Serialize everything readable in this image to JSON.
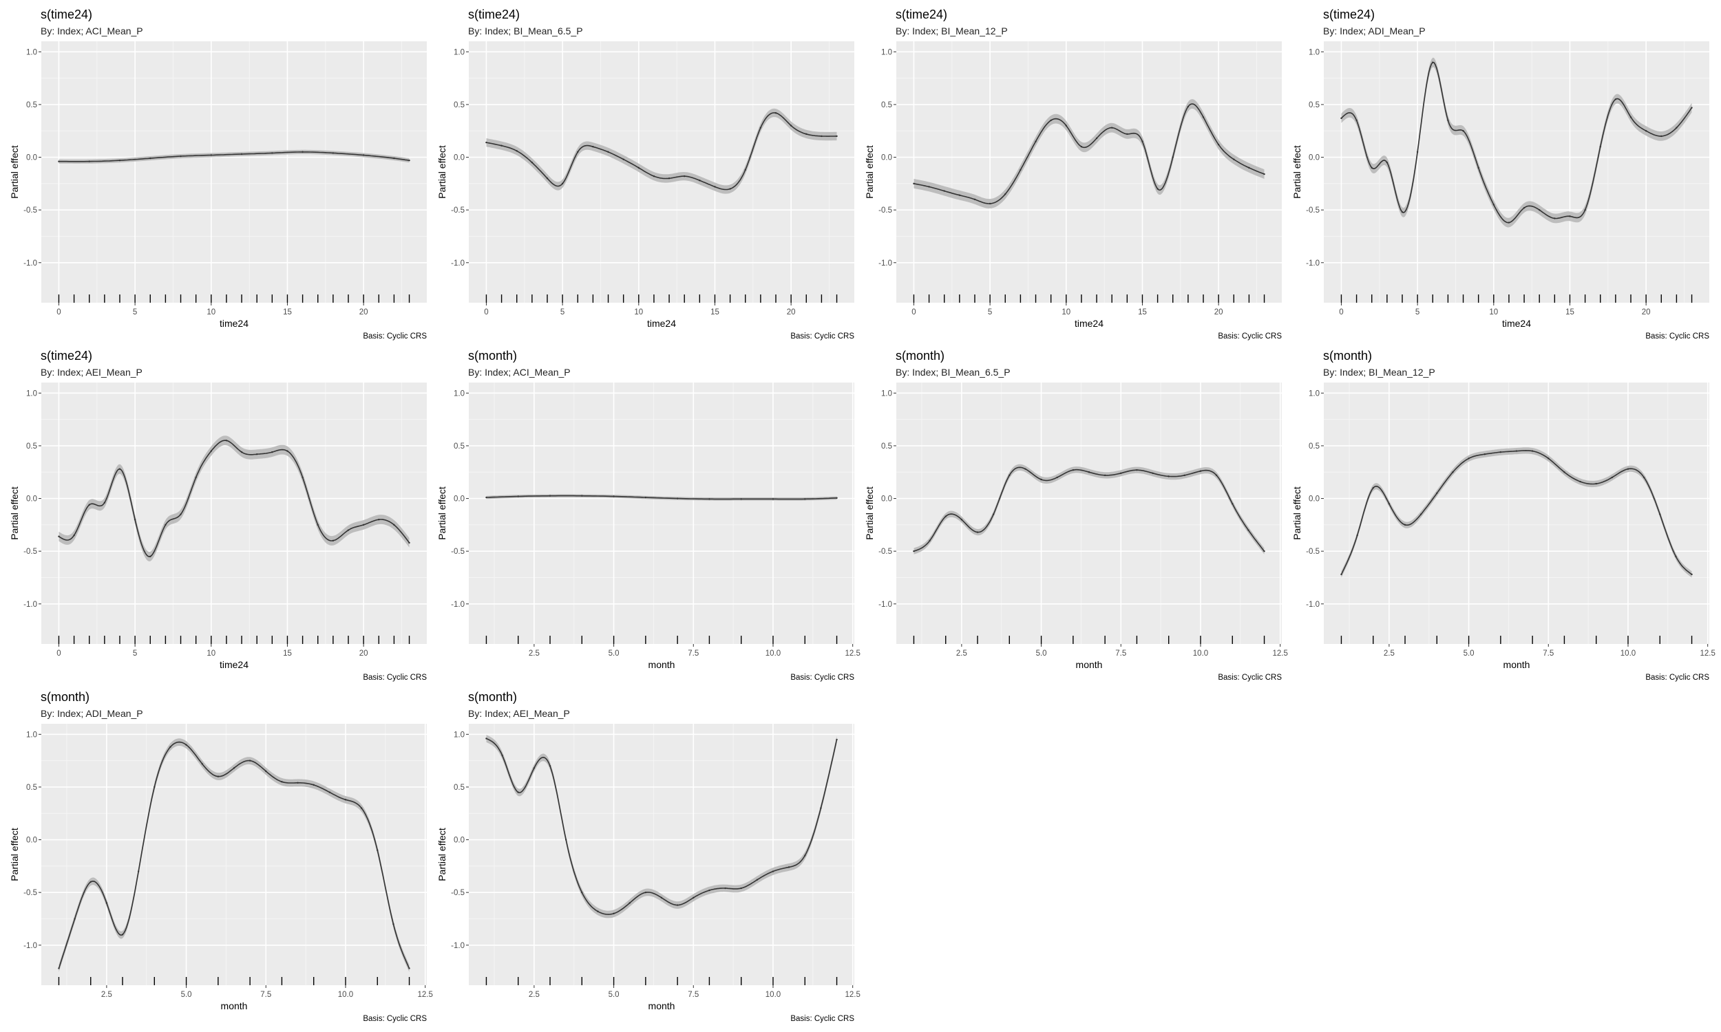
{
  "chart_data": [
    {
      "type": "line",
      "title": "s(time24)",
      "subtitle": "By: Index; ACI_Mean_P",
      "xlabel": "time24",
      "ylabel": "Partial effect",
      "caption": "Basis: Cyclic CRS",
      "xlim": [
        -1.15,
        24.15
      ],
      "ylim": [
        -1.38,
        1.1
      ],
      "xticks": [
        0,
        5,
        10,
        15,
        20
      ],
      "xtick_labels": [
        "0",
        "5",
        "10",
        "15",
        "20"
      ],
      "yticks": [
        -1.0,
        -0.5,
        0.0,
        0.5,
        1.0
      ],
      "ytick_labels": [
        "-1.0",
        "-0.5",
        "0.0",
        "0.5",
        "1.0"
      ],
      "rug": [
        0,
        1,
        2,
        3,
        4,
        5,
        6,
        7,
        8,
        9,
        10,
        11,
        12,
        13,
        14,
        15,
        16,
        17,
        18,
        19,
        20,
        21,
        22,
        23
      ],
      "ci_halfwidth": 0.02,
      "x": [
        0,
        2,
        4,
        6,
        8,
        10,
        12,
        14,
        16,
        18,
        20,
        22,
        23
      ],
      "y": [
        -0.04,
        -0.04,
        -0.03,
        -0.01,
        0.01,
        0.02,
        0.03,
        0.04,
        0.05,
        0.04,
        0.02,
        -0.01,
        -0.03
      ],
      "grid": true
    },
    {
      "type": "line",
      "title": "s(time24)",
      "subtitle": "By: Index; BI_Mean_6.5_P",
      "xlabel": "time24",
      "ylabel": "Partial effect",
      "caption": "Basis: Cyclic CRS",
      "xlim": [
        -1.15,
        24.15
      ],
      "ylim": [
        -1.38,
        1.1
      ],
      "xticks": [
        0,
        5,
        10,
        15,
        20
      ],
      "xtick_labels": [
        "0",
        "5",
        "10",
        "15",
        "20"
      ],
      "yticks": [
        -1.0,
        -0.5,
        0.0,
        0.5,
        1.0
      ],
      "ytick_labels": [
        "-1.0",
        "-0.5",
        "0.0",
        "0.5",
        "1.0"
      ],
      "rug": [
        0,
        1,
        2,
        3,
        4,
        5,
        6,
        7,
        8,
        9,
        10,
        11,
        12,
        13,
        14,
        15,
        16,
        17,
        18,
        19,
        20,
        21,
        22,
        23
      ],
      "ci_halfwidth": 0.04,
      "x": [
        0,
        1,
        2,
        3,
        4,
        5,
        6,
        7,
        8,
        9,
        10,
        11,
        12,
        13,
        14,
        15,
        16,
        17,
        18,
        19,
        20,
        21,
        22,
        23
      ],
      "y": [
        0.14,
        0.11,
        0.06,
        -0.05,
        -0.2,
        -0.25,
        0.05,
        0.1,
        0.05,
        -0.02,
        -0.1,
        -0.18,
        -0.2,
        -0.18,
        -0.22,
        -0.28,
        -0.3,
        -0.12,
        0.28,
        0.42,
        0.3,
        0.22,
        0.2,
        0.2
      ],
      "grid": true
    },
    {
      "type": "line",
      "title": "s(time24)",
      "subtitle": "By: Index; BI_Mean_12_P",
      "xlabel": "time24",
      "ylabel": "Partial effect",
      "caption": "Basis: Cyclic CRS",
      "xlim": [
        -1.15,
        24.15
      ],
      "ylim": [
        -1.38,
        1.1
      ],
      "xticks": [
        0,
        5,
        10,
        15,
        20
      ],
      "xtick_labels": [
        "0",
        "5",
        "10",
        "15",
        "20"
      ],
      "yticks": [
        -1.0,
        -0.5,
        0.0,
        0.5,
        1.0
      ],
      "ytick_labels": [
        "-1.0",
        "-0.5",
        "0.0",
        "0.5",
        "1.0"
      ],
      "rug": [
        0,
        1,
        2,
        3,
        4,
        5,
        6,
        7,
        8,
        9,
        10,
        11,
        12,
        13,
        14,
        15,
        16,
        17,
        18,
        19,
        20,
        21,
        22,
        23
      ],
      "ci_halfwidth": 0.045,
      "x": [
        0,
        1,
        2,
        3,
        4,
        5,
        6,
        7,
        8,
        9,
        10,
        11,
        12,
        13,
        14,
        15,
        16,
        17,
        18,
        19,
        20,
        21,
        22,
        23
      ],
      "y": [
        -0.25,
        -0.28,
        -0.32,
        -0.36,
        -0.4,
        -0.44,
        -0.35,
        -0.12,
        0.15,
        0.35,
        0.3,
        0.1,
        0.18,
        0.28,
        0.22,
        0.15,
        -0.3,
        0.0,
        0.48,
        0.38,
        0.12,
        -0.02,
        -0.1,
        -0.16
      ],
      "grid": true
    },
    {
      "type": "line",
      "title": "s(time24)",
      "subtitle": "By: Index; ADI_Mean_P",
      "xlabel": "time24",
      "ylabel": "Partial effect",
      "caption": "Basis: Cyclic CRS",
      "xlim": [
        -1.15,
        24.15
      ],
      "ylim": [
        -1.38,
        1.1
      ],
      "xticks": [
        0,
        5,
        10,
        15,
        20
      ],
      "xtick_labels": [
        "0",
        "5",
        "10",
        "15",
        "20"
      ],
      "yticks": [
        -1.0,
        -0.5,
        0.0,
        0.5,
        1.0
      ],
      "ytick_labels": [
        "-1.0",
        "-0.5",
        "0.0",
        "0.5",
        "1.0"
      ],
      "rug": [
        0,
        1,
        2,
        3,
        4,
        5,
        6,
        7,
        8,
        9,
        10,
        11,
        12,
        13,
        14,
        15,
        16,
        17,
        18,
        19,
        20,
        21,
        22,
        23
      ],
      "ci_halfwidth": 0.045,
      "x": [
        0,
        1,
        2,
        3,
        4,
        5,
        6,
        7,
        8,
        9,
        10,
        11,
        12,
        13,
        14,
        15,
        16,
        17,
        18,
        19,
        20,
        21,
        22,
        23
      ],
      "y": [
        0.37,
        0.35,
        -0.1,
        -0.05,
        -0.52,
        0.05,
        0.9,
        0.35,
        0.25,
        -0.1,
        -0.45,
        -0.62,
        -0.48,
        -0.5,
        -0.58,
        -0.56,
        -0.5,
        0.1,
        0.55,
        0.38,
        0.25,
        0.2,
        0.28,
        0.47
      ],
      "grid": true
    },
    {
      "type": "line",
      "title": "s(time24)",
      "subtitle": "By: Index; AEI_Mean_P",
      "xlabel": "time24",
      "ylabel": "Partial effect",
      "caption": "Basis: Cyclic CRS",
      "xlim": [
        -1.15,
        24.15
      ],
      "ylim": [
        -1.38,
        1.1
      ],
      "xticks": [
        0,
        5,
        10,
        15,
        20
      ],
      "xtick_labels": [
        "0",
        "5",
        "10",
        "15",
        "20"
      ],
      "yticks": [
        -1.0,
        -0.5,
        0.0,
        0.5,
        1.0
      ],
      "ytick_labels": [
        "-1.0",
        "-0.5",
        "0.0",
        "0.5",
        "1.0"
      ],
      "rug": [
        0,
        1,
        2,
        3,
        4,
        5,
        6,
        7,
        8,
        9,
        10,
        11,
        12,
        13,
        14,
        15,
        16,
        17,
        18,
        19,
        20,
        21,
        22,
        23
      ],
      "ci_halfwidth": 0.045,
      "x": [
        0,
        1,
        2,
        3,
        4,
        5,
        6,
        7,
        8,
        9,
        10,
        11,
        12,
        13,
        14,
        15,
        16,
        17,
        18,
        19,
        20,
        21,
        22,
        23
      ],
      "y": [
        -0.36,
        -0.35,
        -0.06,
        -0.04,
        0.28,
        -0.2,
        -0.55,
        -0.25,
        -0.15,
        0.2,
        0.45,
        0.55,
        0.44,
        0.42,
        0.44,
        0.45,
        0.2,
        -0.25,
        -0.4,
        -0.3,
        -0.25,
        -0.2,
        -0.25,
        -0.42
      ],
      "grid": true
    },
    {
      "type": "line",
      "title": "s(month)",
      "subtitle": "By: Index; ACI_Mean_P",
      "xlabel": "month",
      "ylabel": "Partial effect",
      "caption": "Basis: Cyclic CRS",
      "xlim": [
        0.45,
        12.55
      ],
      "ylim": [
        -1.38,
        1.1
      ],
      "xticks": [
        2.5,
        5.0,
        7.5,
        10.0,
        12.5
      ],
      "xtick_labels": [
        "2.5",
        "5.0",
        "7.5",
        "10.0",
        "12.5"
      ],
      "yticks": [
        -1.0,
        -0.5,
        0.0,
        0.5,
        1.0
      ],
      "ytick_labels": [
        "-1.0",
        "-0.5",
        "0.0",
        "0.5",
        "1.0"
      ],
      "rug": [
        1,
        2,
        3,
        4,
        5,
        6,
        7,
        8,
        9,
        10,
        11,
        12
      ],
      "ci_halfwidth": 0.015,
      "x": [
        1,
        2,
        3,
        4,
        5,
        6,
        7,
        8,
        9,
        10,
        11,
        12
      ],
      "y": [
        0.01,
        0.02,
        0.025,
        0.025,
        0.02,
        0.01,
        0.0,
        -0.005,
        -0.005,
        -0.005,
        -0.005,
        0.005
      ],
      "grid": true
    },
    {
      "type": "line",
      "title": "s(month)",
      "subtitle": "By: Index; BI_Mean_6.5_P",
      "xlabel": "month",
      "ylabel": "Partial effect",
      "caption": "Basis: Cyclic CRS",
      "xlim": [
        0.45,
        12.55
      ],
      "ylim": [
        -1.38,
        1.1
      ],
      "xticks": [
        2.5,
        5.0,
        7.5,
        10.0,
        12.5
      ],
      "xtick_labels": [
        "2.5",
        "5.0",
        "7.5",
        "10.0",
        "12.5"
      ],
      "yticks": [
        -1.0,
        -0.5,
        0.0,
        0.5,
        1.0
      ],
      "ytick_labels": [
        "-1.0",
        "-0.5",
        "0.0",
        "0.5",
        "1.0"
      ],
      "rug": [
        1,
        2,
        3,
        4,
        5,
        6,
        7,
        8,
        9,
        10,
        11,
        12
      ],
      "ci_halfwidth": 0.03,
      "x": [
        1,
        1.5,
        2,
        2.5,
        3,
        3.5,
        4,
        4.5,
        5,
        5.5,
        6,
        6.5,
        7,
        7.5,
        8,
        8.5,
        9,
        9.5,
        10,
        10.5,
        11,
        11.5,
        12
      ],
      "y": [
        -0.5,
        -0.4,
        -0.17,
        -0.2,
        -0.32,
        -0.15,
        0.22,
        0.28,
        0.18,
        0.2,
        0.27,
        0.25,
        0.22,
        0.24,
        0.27,
        0.24,
        0.21,
        0.22,
        0.26,
        0.22,
        -0.05,
        -0.3,
        -0.5
      ],
      "grid": true
    },
    {
      "type": "line",
      "title": "s(month)",
      "subtitle": "By: Index; BI_Mean_12_P",
      "xlabel": "month",
      "ylabel": "Partial effect",
      "caption": "Basis: Cyclic CRS",
      "xlim": [
        0.45,
        12.55
      ],
      "ylim": [
        -1.38,
        1.1
      ],
      "xticks": [
        2.5,
        5.0,
        7.5,
        10.0,
        12.5
      ],
      "xtick_labels": [
        "2.5",
        "5.0",
        "7.5",
        "10.0",
        "12.5"
      ],
      "yticks": [
        -1.0,
        -0.5,
        0.0,
        0.5,
        1.0
      ],
      "ytick_labels": [
        "-1.0",
        "-0.5",
        "0.0",
        "0.5",
        "1.0"
      ],
      "rug": [
        1,
        2,
        3,
        4,
        5,
        6,
        7,
        8,
        9,
        10,
        11,
        12
      ],
      "ci_halfwidth": 0.03,
      "x": [
        1,
        1.5,
        2,
        2.5,
        3,
        3.5,
        4,
        4.5,
        5,
        5.5,
        6,
        6.5,
        7,
        7.5,
        8,
        8.5,
        9,
        9.5,
        10,
        10.5,
        11,
        11.5,
        12
      ],
      "y": [
        -0.72,
        -0.35,
        0.1,
        -0.05,
        -0.25,
        -0.15,
        0.05,
        0.25,
        0.38,
        0.42,
        0.44,
        0.45,
        0.45,
        0.38,
        0.25,
        0.16,
        0.14,
        0.2,
        0.28,
        0.2,
        -0.15,
        -0.55,
        -0.72
      ],
      "grid": true
    },
    {
      "type": "line",
      "title": "s(month)",
      "subtitle": "By: Index; ADI_Mean_P",
      "xlabel": "month",
      "ylabel": "Partial effect",
      "caption": "Basis: Cyclic CRS",
      "xlim": [
        0.45,
        12.55
      ],
      "ylim": [
        -1.38,
        1.1
      ],
      "xticks": [
        2.5,
        5.0,
        7.5,
        10.0,
        12.5
      ],
      "xtick_labels": [
        "2.5",
        "5.0",
        "7.5",
        "10.0",
        "12.5"
      ],
      "yticks": [
        -1.0,
        -0.5,
        0.0,
        0.5,
        1.0
      ],
      "ytick_labels": [
        "-1.0",
        "-0.5",
        "0.0",
        "0.5",
        "1.0"
      ],
      "rug": [
        1,
        2,
        3,
        4,
        5,
        6,
        7,
        8,
        9,
        10,
        11,
        12
      ],
      "ci_halfwidth": 0.035,
      "x": [
        1,
        1.5,
        2,
        2.5,
        3,
        3.5,
        4,
        4.5,
        5,
        5.5,
        6,
        6.5,
        7,
        7.5,
        8,
        8.5,
        9,
        9.5,
        10,
        10.5,
        11,
        11.5,
        12
      ],
      "y": [
        -1.22,
        -0.75,
        -0.4,
        -0.6,
        -0.9,
        -0.3,
        0.5,
        0.88,
        0.9,
        0.72,
        0.6,
        0.68,
        0.75,
        0.65,
        0.55,
        0.54,
        0.52,
        0.45,
        0.38,
        0.3,
        -0.1,
        -0.8,
        -1.22
      ],
      "grid": true
    },
    {
      "type": "line",
      "title": "s(month)",
      "subtitle": "By: Index; AEI_Mean_P",
      "xlabel": "month",
      "ylabel": "Partial effect",
      "caption": "Basis: Cyclic CRS",
      "xlim": [
        0.45,
        12.55
      ],
      "ylim": [
        -1.38,
        1.1
      ],
      "xticks": [
        2.5,
        5.0,
        7.5,
        10.0,
        12.5
      ],
      "xtick_labels": [
        "2.5",
        "5.0",
        "7.5",
        "10.0",
        "12.5"
      ],
      "yticks": [
        -1.0,
        -0.5,
        0.0,
        0.5,
        1.0
      ],
      "ytick_labels": [
        "-1.0",
        "-0.5",
        "0.0",
        "0.5",
        "1.0"
      ],
      "rug": [
        1,
        2,
        3,
        4,
        5,
        6,
        7,
        8,
        9,
        10,
        11,
        12
      ],
      "ci_halfwidth": 0.035,
      "x": [
        1,
        1.5,
        2,
        2.5,
        3,
        3.5,
        4,
        4.5,
        5,
        5.5,
        6,
        6.5,
        7,
        7.5,
        8,
        8.5,
        9,
        9.5,
        10,
        10.5,
        11,
        11.5,
        12
      ],
      "y": [
        0.96,
        0.8,
        0.45,
        0.68,
        0.7,
        0.0,
        -0.5,
        -0.68,
        -0.7,
        -0.6,
        -0.5,
        -0.55,
        -0.62,
        -0.55,
        -0.48,
        -0.46,
        -0.46,
        -0.38,
        -0.3,
        -0.26,
        -0.15,
        0.3,
        0.95
      ],
      "grid": true
    }
  ],
  "colors": {
    "panel_bg": "#ebebeb",
    "grid_major": "#ffffff",
    "ribbon": "#bdbdbd",
    "line": "#333333",
    "tick_text": "#4d4d4d"
  }
}
